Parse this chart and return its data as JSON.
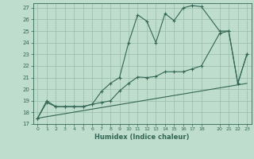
{
  "title": "",
  "xlabel": "Humidex (Indice chaleur)",
  "bg_color": "#beddcc",
  "grid_color": "#99bbaa",
  "line_color": "#336655",
  "xlim": [
    -0.5,
    23.5
  ],
  "ylim": [
    17,
    27.4
  ],
  "yticks": [
    17,
    18,
    19,
    20,
    21,
    22,
    23,
    24,
    25,
    26,
    27
  ],
  "xtick_vals": [
    0,
    1,
    2,
    3,
    4,
    5,
    6,
    7,
    8,
    9,
    10,
    11,
    12,
    13,
    14,
    15,
    16,
    17,
    18,
    20,
    21,
    22,
    23
  ],
  "xtick_labels": [
    "0",
    "1",
    "2",
    "3",
    "4",
    "5",
    "6",
    "7",
    "8",
    "9",
    "10",
    "11",
    "12",
    "13",
    "14",
    "15",
    "16",
    "17",
    "18",
    "20",
    "21",
    "22",
    "23"
  ],
  "line1_x": [
    0,
    1,
    2,
    3,
    4,
    5,
    6,
    7,
    8,
    9,
    10,
    11,
    12,
    13,
    14,
    15,
    16,
    17,
    18,
    20,
    21,
    22,
    23
  ],
  "line1_y": [
    17.5,
    18.85,
    18.5,
    18.5,
    18.5,
    18.5,
    18.7,
    18.85,
    19.0,
    19.85,
    20.5,
    21.05,
    21.0,
    21.1,
    21.5,
    21.5,
    21.5,
    21.75,
    22.0,
    24.8,
    25.0,
    20.5,
    23.0
  ],
  "line2_x": [
    0,
    1,
    2,
    3,
    4,
    5,
    6,
    7,
    8,
    9,
    10,
    11,
    12,
    13,
    14,
    15,
    16,
    17,
    18,
    20,
    21,
    22,
    23
  ],
  "line2_y": [
    17.5,
    19.0,
    18.5,
    18.5,
    18.5,
    18.5,
    18.7,
    19.8,
    20.5,
    21.0,
    24.0,
    26.4,
    25.85,
    24.0,
    26.5,
    25.9,
    27.0,
    27.2,
    27.1,
    25.0,
    25.0,
    20.5,
    23.0
  ],
  "line3_x": [
    0,
    23
  ],
  "line3_y": [
    17.5,
    20.5
  ]
}
